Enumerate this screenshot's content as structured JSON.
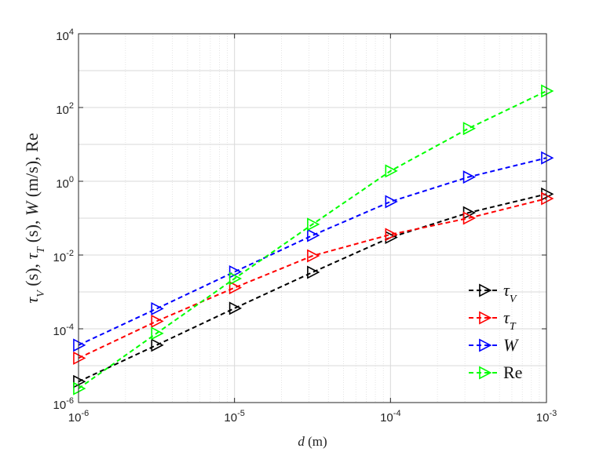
{
  "chart_data": {
    "type": "line",
    "xscale": "log",
    "yscale": "log",
    "xlim": [
      1e-06,
      0.001
    ],
    "ylim": [
      1e-06,
      10000.0
    ],
    "xlabel_italic": "d",
    "xlabel_rest": " (m)",
    "ylabel": "τV (s), τT (s), W (m/s), Re",
    "grid": true,
    "legend_position": "bottom-right",
    "x_ticks": [
      {
        "base": "10",
        "exp": "-6",
        "value": 1e-06
      },
      {
        "base": "10",
        "exp": "-5",
        "value": 1e-05
      },
      {
        "base": "10",
        "exp": "-4",
        "value": 0.0001
      },
      {
        "base": "10",
        "exp": "-3",
        "value": 0.001
      }
    ],
    "y_ticks": [
      {
        "base": "10",
        "exp": "-6",
        "value": 1e-06
      },
      {
        "base": "10",
        "exp": "-4",
        "value": 0.0001
      },
      {
        "base": "10",
        "exp": "-2",
        "value": 0.01
      },
      {
        "base": "10",
        "exp": "0",
        "value": 1.0
      },
      {
        "base": "10",
        "exp": "2",
        "value": 100.0
      },
      {
        "base": "10",
        "exp": "4",
        "value": 10000.0
      }
    ],
    "x": [
      1e-06,
      3.16e-06,
      1e-05,
      3.16e-05,
      0.0001,
      0.000316,
      0.001
    ],
    "series": [
      {
        "name": "τV",
        "label_main": "τ",
        "label_sub": "V",
        "color": "#000000",
        "values": [
          3.7e-06,
          3.6e-05,
          0.00036,
          0.0034,
          0.03,
          0.14,
          0.45
        ]
      },
      {
        "name": "τT",
        "label_main": "τ",
        "label_sub": "T",
        "color": "#ff0000",
        "values": [
          1.6e-05,
          0.00016,
          0.0013,
          0.0095,
          0.036,
          0.1,
          0.34
        ]
      },
      {
        "name": "W",
        "label_main": "W",
        "label_sub": "",
        "color": "#0000ff",
        "values": [
          3.6e-05,
          0.00035,
          0.0035,
          0.034,
          0.28,
          1.3,
          4.3
        ]
      },
      {
        "name": "Re",
        "label_main": "Re",
        "label_sub": "",
        "color": "#00ff00",
        "values": [
          2.4e-06,
          7.5e-05,
          0.0023,
          0.068,
          1.9,
          27,
          280
        ]
      }
    ]
  }
}
